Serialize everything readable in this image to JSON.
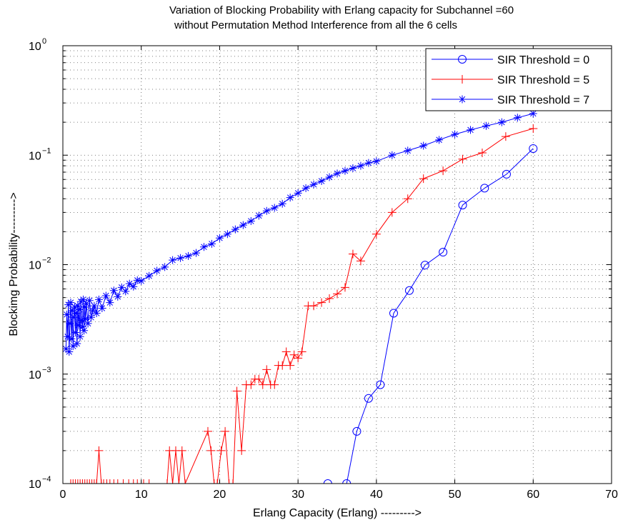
{
  "chart_data": {
    "type": "line",
    "title_line1": "Variation of Blocking Probability with Erlang capacity for Subchannel =60",
    "title_line2": "without Permutation Method Interference from all the 6 cells",
    "xlabel": "Erlang Capacity (Erlang) --------->",
    "ylabel": "Blockimg Probability--------->",
    "xlim": [
      0,
      70
    ],
    "ylim": [
      0.0001,
      1
    ],
    "yscale": "log",
    "grid": true,
    "legend_position": "top-right",
    "x_ticks": [
      {
        "value": 0,
        "label": "0"
      },
      {
        "value": 10,
        "label": "10"
      },
      {
        "value": 20,
        "label": "20"
      },
      {
        "value": 30,
        "label": "30"
      },
      {
        "value": 40,
        "label": "40"
      },
      {
        "value": 50,
        "label": "50"
      },
      {
        "value": 60,
        "label": "60"
      },
      {
        "value": 70,
        "label": "70"
      }
    ],
    "y_ticks": [
      {
        "value": 0.0001,
        "base": "10",
        "exp": "−4"
      },
      {
        "value": 0.001,
        "base": "10",
        "exp": "−3"
      },
      {
        "value": 0.01,
        "base": "10",
        "exp": "−2"
      },
      {
        "value": 0.1,
        "base": "10",
        "exp": "−1"
      },
      {
        "value": 1,
        "base": "10",
        "exp": "0"
      }
    ],
    "series": [
      {
        "name": "SIR Threshold = 0",
        "color": "#0000ff",
        "marker": "circle",
        "x": [
          33.8,
          36.2,
          37.5,
          39.0,
          40.5,
          42.2,
          44.2,
          46.2,
          48.5,
          51.0,
          53.8,
          56.6,
          60.0
        ],
        "y": [
          0.0001,
          0.0001,
          0.0003,
          0.0006,
          0.0008,
          0.0036,
          0.0058,
          0.0099,
          0.013,
          0.035,
          0.05,
          0.067,
          0.115
        ]
      },
      {
        "name": "SIR Threshold = 5",
        "color": "#ff0000",
        "marker": "plus",
        "x": [
          1.0,
          1.3,
          1.6,
          1.9,
          2.2,
          2.5,
          2.8,
          3.1,
          3.4,
          3.7,
          4.0,
          4.3,
          4.6,
          4.9,
          5.2,
          5.6,
          6.0,
          6.5,
          7.0,
          7.7,
          8.4,
          9.0,
          9.5,
          10.3,
          11.0,
          13.3,
          13.6,
          14.0,
          14.4,
          14.8,
          15.2,
          15.6,
          18.5,
          18.9,
          19.3,
          19.7,
          20.2,
          20.7,
          21.2,
          21.7,
          22.2,
          22.8,
          23.4,
          24.0,
          24.5,
          25.0,
          25.5,
          26.0,
          26.5,
          27.0,
          27.5,
          28.0,
          28.5,
          29.0,
          29.5,
          30.0,
          30.5,
          31.3,
          32.0,
          33.0,
          34.0,
          35.0,
          36.0,
          37.0,
          38.0,
          40.0,
          42.0,
          44.0,
          46.0,
          48.5,
          51.0,
          53.5,
          56.5,
          60.0
        ],
        "y": [
          0.0001,
          0.0001,
          0.0001,
          0.0001,
          0.0001,
          0.0001,
          0.0001,
          0.0001,
          0.0001,
          0.0001,
          0.0001,
          0.0001,
          0.0002,
          0.0001,
          0.0001,
          0.0001,
          0.0001,
          0.0001,
          0.0001,
          0.0001,
          0.0001,
          0.0001,
          0.0001,
          0.0001,
          0.0001,
          0.0001,
          0.0002,
          0.0001,
          0.0002,
          0.0001,
          0.0002,
          0.0001,
          0.0003,
          0.0002,
          0.0001,
          0.0001,
          0.0002,
          0.0003,
          0.0001,
          0.0001,
          0.0007,
          0.0002,
          0.0008,
          0.0008,
          0.0009,
          0.0009,
          0.0008,
          0.0011,
          0.0008,
          0.0008,
          0.0012,
          0.0012,
          0.0016,
          0.0012,
          0.0015,
          0.0014,
          0.0016,
          0.0042,
          0.0042,
          0.0045,
          0.0049,
          0.0054,
          0.0062,
          0.0125,
          0.0108,
          0.019,
          0.03,
          0.04,
          0.061,
          0.072,
          0.092,
          0.105,
          0.148,
          0.175
        ]
      },
      {
        "name": "SIR Threshold = 7",
        "color": "#0000ff",
        "marker": "star",
        "x": [
          0.4,
          0.5,
          0.6,
          0.7,
          0.8,
          0.9,
          1.0,
          1.1,
          1.2,
          1.3,
          1.4,
          1.5,
          1.6,
          1.7,
          1.8,
          1.9,
          2.0,
          2.1,
          2.2,
          2.3,
          2.4,
          2.5,
          2.6,
          2.7,
          2.8,
          2.9,
          3.0,
          3.2,
          3.4,
          3.6,
          3.8,
          4.0,
          4.3,
          4.6,
          5.0,
          5.5,
          6.0,
          6.5,
          7.0,
          7.5,
          8.0,
          8.5,
          9.0,
          9.5,
          10.0,
          11.0,
          12.0,
          13.0,
          14.0,
          15.0,
          16.0,
          17.0,
          18.0,
          19.0,
          20.0,
          21.0,
          22.0,
          23.0,
          24.0,
          25.0,
          26.0,
          27.0,
          28.0,
          29.0,
          30.0,
          31.0,
          32.0,
          33.0,
          34.0,
          35.0,
          36.0,
          37.0,
          38.0,
          39.0,
          40.0,
          42.0,
          44.0,
          46.0,
          48.0,
          50.0,
          52.0,
          54.0,
          56.0,
          58.0,
          60.0
        ],
        "y": [
          0.0017,
          0.0035,
          0.0022,
          0.0043,
          0.0016,
          0.0029,
          0.0045,
          0.0021,
          0.0038,
          0.0018,
          0.0033,
          0.0041,
          0.0024,
          0.0036,
          0.0019,
          0.0042,
          0.0028,
          0.0039,
          0.0022,
          0.0046,
          0.0031,
          0.0027,
          0.0048,
          0.0025,
          0.0041,
          0.0032,
          0.0044,
          0.0029,
          0.0047,
          0.0033,
          0.0038,
          0.0042,
          0.0036,
          0.0048,
          0.004,
          0.0052,
          0.0045,
          0.0058,
          0.0051,
          0.0062,
          0.0057,
          0.0067,
          0.0063,
          0.0072,
          0.0071,
          0.0079,
          0.0088,
          0.0095,
          0.011,
          0.0115,
          0.012,
          0.0128,
          0.0145,
          0.0155,
          0.0175,
          0.019,
          0.021,
          0.023,
          0.025,
          0.028,
          0.031,
          0.033,
          0.036,
          0.041,
          0.045,
          0.05,
          0.054,
          0.058,
          0.063,
          0.068,
          0.072,
          0.076,
          0.08,
          0.085,
          0.088,
          0.1,
          0.11,
          0.122,
          0.138,
          0.155,
          0.17,
          0.185,
          0.2,
          0.22,
          0.24
        ]
      }
    ]
  }
}
